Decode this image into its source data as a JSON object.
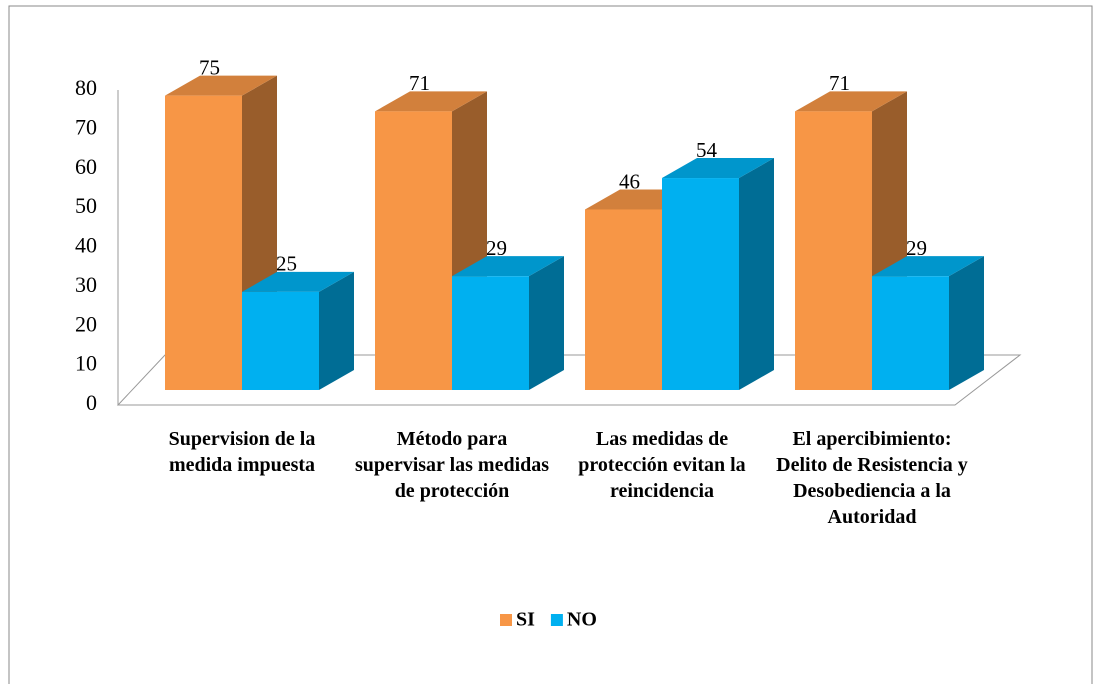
{
  "chart_data": {
    "type": "bar3d",
    "categories": [
      "Supervision de la medida impuesta",
      "Método para supervisar las medidas de protección",
      "Las medidas de protección evitan la reincidencia",
      "El apercibimiento: Delito de Resistencia y Desobediencia a la Autoridad"
    ],
    "series": [
      {
        "name": "SI",
        "color": "#F79646",
        "values": [
          75,
          71,
          46,
          71
        ]
      },
      {
        "name": "NO",
        "color": "#00B0F0",
        "values": [
          25,
          29,
          54,
          29
        ]
      }
    ],
    "ylim": [
      0,
      80
    ],
    "yticks": [
      0,
      10,
      20,
      30,
      40,
      50,
      60,
      70,
      80
    ],
    "grid": false,
    "legend": "bottom"
  }
}
